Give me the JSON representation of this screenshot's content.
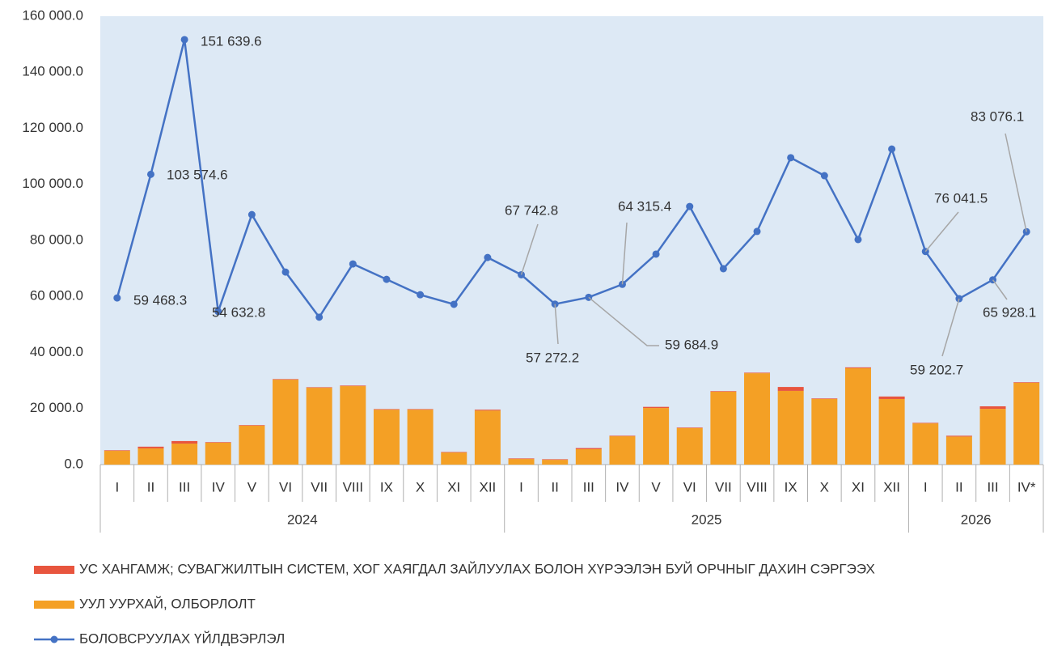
{
  "chart_data": {
    "type": "bar-line",
    "groups": [
      {
        "label": "2024",
        "categories": [
          "I",
          "II",
          "III",
          "IV",
          "V",
          "VI",
          "VII",
          "VIII",
          "IX",
          "X",
          "XI",
          "XII"
        ]
      },
      {
        "label": "2025",
        "categories": [
          "I",
          "II",
          "III",
          "IV",
          "V",
          "VI",
          "VII",
          "VIII",
          "IX",
          "X",
          "XI",
          "XII"
        ]
      },
      {
        "label": "2026",
        "categories": [
          "I",
          "II",
          "III",
          "IV*"
        ]
      }
    ],
    "ylim": [
      0,
      160000
    ],
    "yticks": [
      {
        "value": 0,
        "label": "0.0"
      },
      {
        "value": 20000,
        "label": "20 000.0"
      },
      {
        "value": 40000,
        "label": "40 000.0"
      },
      {
        "value": 60000,
        "label": "60 000.0"
      },
      {
        "value": 80000,
        "label": "80 000.0"
      },
      {
        "value": 100000,
        "label": "100 000.0"
      },
      {
        "value": 120000,
        "label": "120 000.0"
      },
      {
        "value": 140000,
        "label": "140 000.0"
      },
      {
        "value": 160000,
        "label": "160 000.0"
      }
    ],
    "plot_background": "#dde9f5",
    "series": [
      {
        "name": "УС ХАНГАМЖ; СУВАГЖИЛТЫН СИСТЕМ, ХОГ ХАЯГДАЛ ЗАЙЛУУЛАХ БОЛОН ХҮРЭЭЛЭН БУЙ ОРЧНЫГ ДАХИН СЭРГЭЭХ",
        "type": "bar",
        "stack": "a",
        "color": "#e8553e",
        "values": [
          200,
          600,
          900,
          200,
          200,
          200,
          200,
          200,
          200,
          200,
          200,
          300,
          200,
          200,
          400,
          200,
          400,
          200,
          200,
          200,
          1400,
          200,
          300,
          900,
          200,
          300,
          900,
          200
        ]
      },
      {
        "name": "УУЛ УУРХАЙ, ОЛБОРЛОЛТ",
        "type": "bar",
        "stack": "a",
        "color": "#f4a025",
        "values": [
          4900,
          5800,
          7500,
          7800,
          13900,
          30300,
          27400,
          28000,
          19600,
          19600,
          4300,
          19300,
          2000,
          1700,
          5500,
          10100,
          20200,
          13000,
          26000,
          32600,
          26300,
          23400,
          34400,
          23400,
          14700,
          10000,
          19900,
          29200
        ]
      },
      {
        "name": "БОЛОВСРУУЛАХ ҮЙЛДВЭРЛЭЛ",
        "type": "line",
        "color": "#4472c4",
        "values": [
          59468.3,
          103574.6,
          151639.6,
          54632.8,
          89200,
          68700,
          52600,
          71600,
          66100,
          60600,
          57200,
          73900,
          67742.8,
          57272.2,
          59684.9,
          64315.4,
          75100,
          92100,
          69900,
          83200,
          109500,
          103100,
          80300,
          112600,
          76041.5,
          59202.7,
          65928.1,
          83076.1
        ],
        "value_labels": [
          "59 468.3",
          "103 574.6",
          "151 639.6",
          "54 632.8",
          null,
          null,
          null,
          null,
          null,
          null,
          null,
          null,
          "67 742.8",
          "57 272.2",
          "59 684.9",
          "64 315.4",
          null,
          null,
          null,
          null,
          null,
          null,
          null,
          null,
          "76 041.5",
          "59 202.7",
          "65 928.1",
          "83 076.1"
        ]
      }
    ],
    "legend": "bottom"
  }
}
